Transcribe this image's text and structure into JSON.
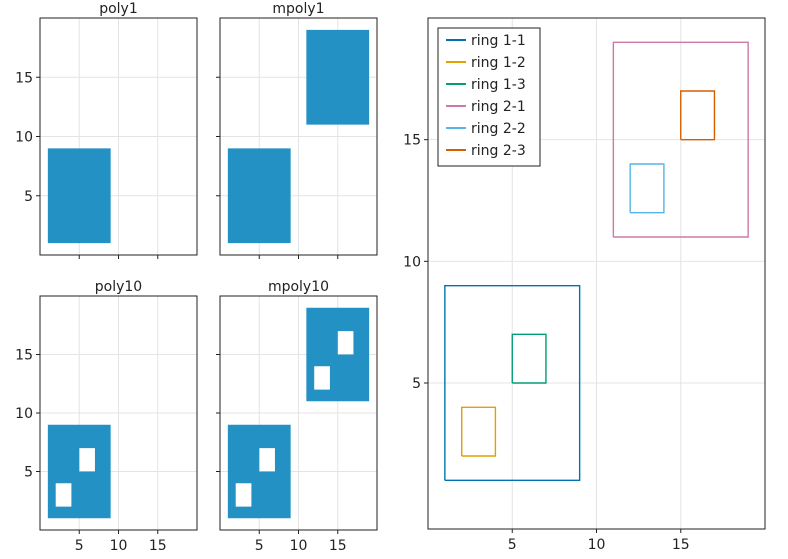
{
  "colors": {
    "fill": "#1f8fc2",
    "ring_1_1": "#0072b2",
    "ring_1_2": "#e69f00",
    "ring_1_3": "#009e73",
    "ring_2_1": "#cc79a7",
    "ring_2_2": "#56b4e9",
    "ring_2_3": "#d55e00"
  },
  "chart_data": [
    {
      "type": "polygon-fill",
      "title": "poly1",
      "xlim": [
        0,
        20
      ],
      "ylim": [
        0,
        20
      ],
      "xticks": [
        5,
        10,
        15
      ],
      "yticks": [
        5,
        10,
        15
      ],
      "show_xtick_labels": false,
      "show_ytick_labels": true,
      "polygons": [
        {
          "outer": [
            [
              1,
              1
            ],
            [
              9,
              1
            ],
            [
              9,
              9
            ],
            [
              1,
              9
            ]
          ],
          "holes": []
        }
      ]
    },
    {
      "type": "polygon-fill",
      "title": "mpoly1",
      "xlim": [
        0,
        20
      ],
      "ylim": [
        0,
        20
      ],
      "xticks": [
        5,
        10,
        15
      ],
      "yticks": [
        5,
        10,
        15
      ],
      "show_xtick_labels": false,
      "show_ytick_labels": false,
      "polygons": [
        {
          "outer": [
            [
              1,
              1
            ],
            [
              9,
              1
            ],
            [
              9,
              9
            ],
            [
              1,
              9
            ]
          ],
          "holes": []
        },
        {
          "outer": [
            [
              11,
              11
            ],
            [
              19,
              11
            ],
            [
              19,
              19
            ],
            [
              11,
              19
            ]
          ],
          "holes": []
        }
      ]
    },
    {
      "type": "polygon-fill",
      "title": "poly10",
      "xlim": [
        0,
        20
      ],
      "ylim": [
        0,
        20
      ],
      "xticks": [
        5,
        10,
        15
      ],
      "yticks": [
        5,
        10,
        15
      ],
      "show_xtick_labels": true,
      "show_ytick_labels": true,
      "polygons": [
        {
          "outer": [
            [
              1,
              1
            ],
            [
              9,
              1
            ],
            [
              9,
              9
            ],
            [
              1,
              9
            ]
          ],
          "holes": [
            [
              [
                2,
                2
              ],
              [
                4,
                2
              ],
              [
                4,
                4
              ],
              [
                2,
                4
              ]
            ],
            [
              [
                5,
                5
              ],
              [
                7,
                5
              ],
              [
                7,
                7
              ],
              [
                5,
                7
              ]
            ]
          ]
        }
      ]
    },
    {
      "type": "polygon-fill",
      "title": "mpoly10",
      "xlim": [
        0,
        20
      ],
      "ylim": [
        0,
        20
      ],
      "xticks": [
        5,
        10,
        15
      ],
      "yticks": [
        5,
        10,
        15
      ],
      "show_xtick_labels": true,
      "show_ytick_labels": false,
      "polygons": [
        {
          "outer": [
            [
              1,
              1
            ],
            [
              9,
              1
            ],
            [
              9,
              9
            ],
            [
              1,
              9
            ]
          ],
          "holes": [
            [
              [
                2,
                2
              ],
              [
                4,
                2
              ],
              [
                4,
                4
              ],
              [
                2,
                4
              ]
            ],
            [
              [
                5,
                5
              ],
              [
                7,
                5
              ],
              [
                7,
                7
              ],
              [
                5,
                7
              ]
            ]
          ]
        },
        {
          "outer": [
            [
              11,
              11
            ],
            [
              19,
              11
            ],
            [
              19,
              19
            ],
            [
              11,
              19
            ]
          ],
          "holes": [
            [
              [
                12,
                12
              ],
              [
                14,
                12
              ],
              [
                14,
                14
              ],
              [
                12,
                14
              ]
            ],
            [
              [
                15,
                15
              ],
              [
                17,
                15
              ],
              [
                17,
                17
              ],
              [
                15,
                17
              ]
            ]
          ]
        }
      ]
    },
    {
      "type": "line",
      "title": "",
      "xlim": [
        0,
        20
      ],
      "ylim": [
        -1,
        20
      ],
      "xticks": [
        5,
        10,
        15
      ],
      "yticks": [
        5,
        10,
        15
      ],
      "show_xtick_labels": true,
      "show_ytick_labels": true,
      "legend_position": "top-left",
      "series": [
        {
          "name": "ring 1-1",
          "color_key": "ring_1_1",
          "points": [
            [
              1,
              1
            ],
            [
              9,
              1
            ],
            [
              9,
              9
            ],
            [
              1,
              9
            ],
            [
              1,
              1
            ]
          ]
        },
        {
          "name": "ring 1-2",
          "color_key": "ring_1_2",
          "points": [
            [
              2,
              2
            ],
            [
              4,
              2
            ],
            [
              4,
              4
            ],
            [
              2,
              4
            ],
            [
              2,
              2
            ]
          ]
        },
        {
          "name": "ring 1-3",
          "color_key": "ring_1_3",
          "points": [
            [
              5,
              5
            ],
            [
              7,
              5
            ],
            [
              7,
              7
            ],
            [
              5,
              7
            ],
            [
              5,
              5
            ]
          ]
        },
        {
          "name": "ring 2-1",
          "color_key": "ring_2_1",
          "points": [
            [
              11,
              11
            ],
            [
              19,
              11
            ],
            [
              19,
              19
            ],
            [
              11,
              19
            ],
            [
              11,
              11
            ]
          ]
        },
        {
          "name": "ring 2-2",
          "color_key": "ring_2_2",
          "points": [
            [
              12,
              12
            ],
            [
              14,
              12
            ],
            [
              14,
              14
            ],
            [
              12,
              14
            ],
            [
              12,
              12
            ]
          ]
        },
        {
          "name": "ring 2-3",
          "color_key": "ring_2_3",
          "points": [
            [
              15,
              15
            ],
            [
              17,
              15
            ],
            [
              17,
              17
            ],
            [
              15,
              17
            ],
            [
              15,
              15
            ]
          ]
        }
      ]
    }
  ]
}
